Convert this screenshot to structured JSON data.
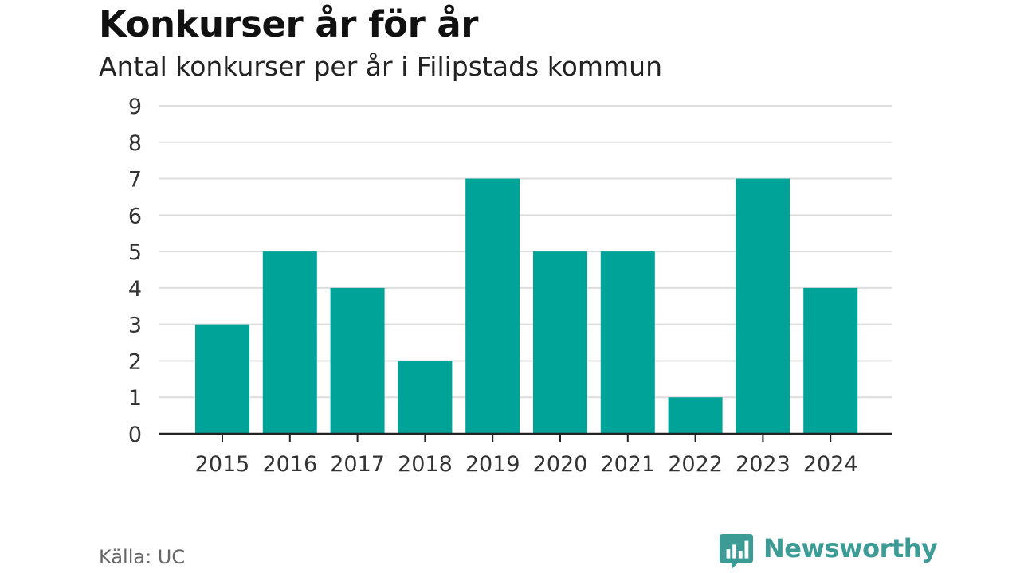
{
  "chart_data": {
    "type": "bar",
    "title": "Konkurser år för år",
    "subtitle": "Antal konkurser per år i Filipstads kommun",
    "categories": [
      "2015",
      "2016",
      "2017",
      "2018",
      "2019",
      "2020",
      "2021",
      "2022",
      "2023",
      "2024"
    ],
    "values": [
      3,
      5,
      4,
      2,
      7,
      5,
      5,
      1,
      7,
      4
    ],
    "xlabel": "",
    "ylabel": "",
    "ylim": [
      0,
      9
    ],
    "yticks": [
      0,
      1,
      2,
      3,
      4,
      5,
      6,
      7,
      8,
      9
    ],
    "grid": true,
    "legend": "none",
    "bar_color": "#00a398"
  },
  "footer": {
    "source": "Källa: UC",
    "brand": "Newsworthy",
    "brand_color": "#3d9b95",
    "brand_icon": "bar-chart-speech-bubble-icon"
  }
}
